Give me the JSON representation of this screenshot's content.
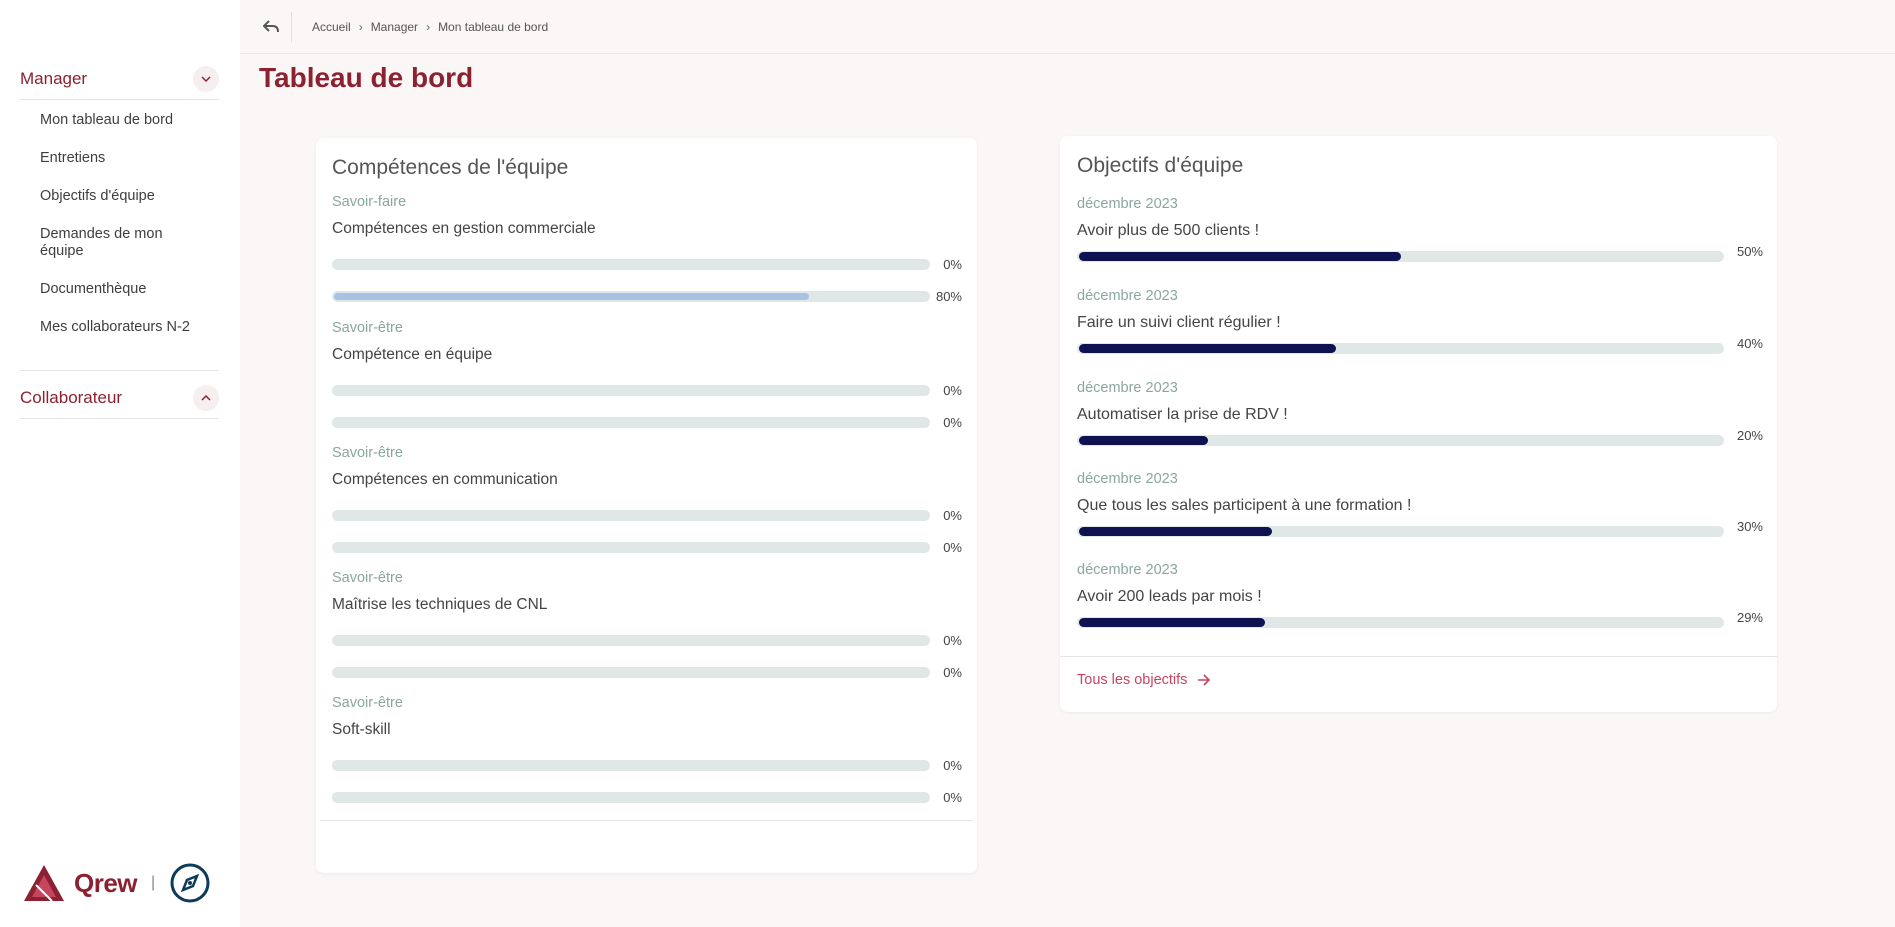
{
  "breadcrumb": [
    "Accueil",
    "Manager",
    "Mon tableau de bord"
  ],
  "page_title": "Tableau de bord",
  "sidebar": {
    "sections": [
      {
        "title": "Manager",
        "expanded": true,
        "items": [
          "Mon tableau de bord",
          "Entretiens",
          "Objectifs d'équipe",
          "Demandes de mon équipe",
          "Documenthèque",
          "Mes collaborateurs N-2"
        ]
      },
      {
        "title": "Collaborateur",
        "expanded": false,
        "items": []
      }
    ],
    "logo_text": "Qrew",
    "logo_sep": "|"
  },
  "skills_card": {
    "title": "Compétences de l'équipe",
    "skills": [
      {
        "category": "Savoir-faire",
        "name": "Compétences en gestion commerciale",
        "bars": [
          0,
          80
        ],
        "labels": [
          "0%",
          "80%"
        ]
      },
      {
        "category": "Savoir-être",
        "name": "Compétence en équipe",
        "bars": [
          0,
          0
        ],
        "labels": [
          "0%",
          "0%"
        ]
      },
      {
        "category": "Savoir-être",
        "name": "Compétences en communication",
        "bars": [
          0,
          0
        ],
        "labels": [
          "0%",
          "0%"
        ]
      },
      {
        "category": "Savoir-être",
        "name": "Maîtrise les techniques de CNL",
        "bars": [
          0,
          0
        ],
        "labels": [
          "0%",
          "0%"
        ]
      },
      {
        "category": "Savoir-être",
        "name": "Soft-skill",
        "bars": [
          0,
          0
        ],
        "labels": [
          "0%",
          "0%"
        ]
      }
    ]
  },
  "objectives_card": {
    "title": "Objectifs d'équipe",
    "objectives": [
      {
        "date": "décembre 2023",
        "name": "Avoir plus de 500 clients !",
        "progress": 50,
        "label": "50%"
      },
      {
        "date": "décembre 2023",
        "name": "Faire un suivi client régulier !",
        "progress": 40,
        "label": "40%"
      },
      {
        "date": "décembre 2023",
        "name": "Automatiser la prise de RDV !",
        "progress": 20,
        "label": "20%"
      },
      {
        "date": "décembre 2023",
        "name": "Que tous les sales participent à une formation !",
        "progress": 30,
        "label": "30%"
      },
      {
        "date": "décembre 2023",
        "name": "Avoir 200 leads par mois !",
        "progress": 29,
        "label": "29%"
      }
    ],
    "all_link": "Tous les objectifs"
  },
  "colors": {
    "brand": "#8c2131",
    "accent_link": "#c9445e",
    "objective_fill": "#0e1250",
    "skill_fill": "#a8c2e4",
    "track": "#dfe8e7"
  }
}
